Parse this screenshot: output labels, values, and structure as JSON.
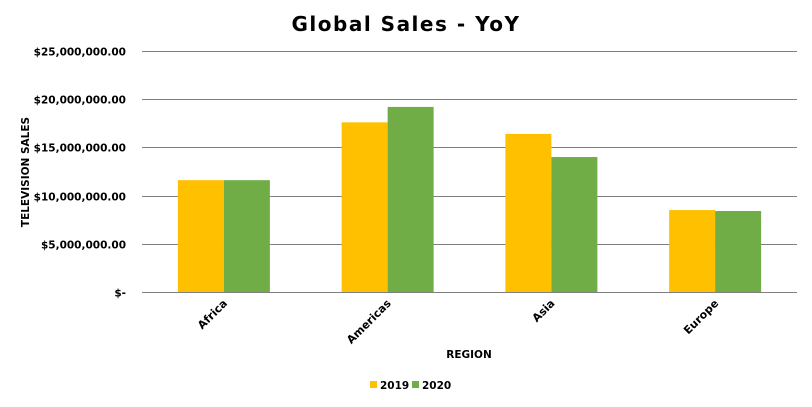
{
  "chart_data": {
    "type": "bar",
    "title": "Global Sales - YoY",
    "xlabel": "REGION",
    "ylabel": "TELEVISION SALES",
    "categories": [
      "Africa",
      "Americas",
      "Asia",
      "Europe"
    ],
    "series": [
      {
        "name": "2019",
        "color": "#FFC000",
        "values": [
          11600000,
          17600000,
          16400000,
          8500000
        ]
      },
      {
        "name": "2020",
        "color": "#70AD47",
        "values": [
          11600000,
          19200000,
          14000000,
          8400000
        ]
      }
    ],
    "ylim": [
      0,
      25000000
    ],
    "yticks": [
      {
        "value": 0,
        "label": "$-"
      },
      {
        "value": 5000000,
        "label": "$5,000,000.00"
      },
      {
        "value": 10000000,
        "label": "$10,000,000.00"
      },
      {
        "value": 15000000,
        "label": "$15,000,000.00"
      },
      {
        "value": 20000000,
        "label": "$20,000,000.00"
      },
      {
        "value": 25000000,
        "label": "$25,000,000.00"
      }
    ],
    "grid": true,
    "legend_position": "bottom"
  }
}
